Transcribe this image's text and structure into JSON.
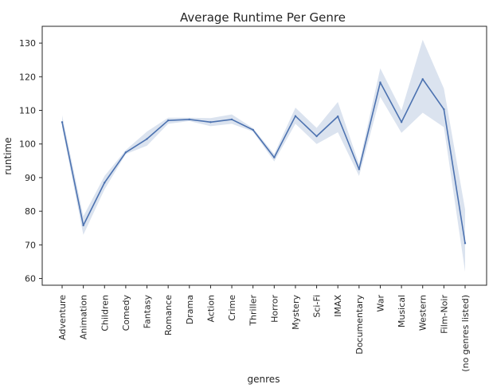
{
  "chart_data": {
    "type": "line",
    "title": "Average Runtime Per Genre",
    "xlabel": "genres",
    "ylabel": "runtime",
    "ylim": [
      58,
      135
    ],
    "yticks": [
      60,
      70,
      80,
      90,
      100,
      110,
      120,
      130
    ],
    "grid": false,
    "line_color": "#4c72b0",
    "band_color": "#4c72b0",
    "categories": [
      "Adventure",
      "Animation",
      "Children",
      "Comedy",
      "Fantasy",
      "Romance",
      "Drama",
      "Action",
      "Crime",
      "Thriller",
      "Horror",
      "Mystery",
      "Sci-Fi",
      "IMAX",
      "Documentary",
      "War",
      "Musical",
      "Western",
      "Film-Noir",
      "(no genres listed)"
    ],
    "series": [
      {
        "values": [
          106.5,
          75.8,
          88.5,
          97.5,
          101.5,
          107.0,
          107.3,
          106.5,
          107.3,
          104.2,
          96.0,
          108.3,
          102.3,
          108.2,
          92.5,
          118.3,
          106.5,
          119.3,
          110.3,
          70.5
        ],
        "ci_lower": [
          105.0,
          73.0,
          86.5,
          97.0,
          99.5,
          106.0,
          106.8,
          105.3,
          106.0,
          103.7,
          94.8,
          106.0,
          100.0,
          103.5,
          90.5,
          114.0,
          103.3,
          109.3,
          105.0,
          62.0
        ],
        "ci_upper": [
          108.5,
          78.5,
          90.5,
          98.2,
          103.7,
          107.8,
          107.8,
          107.7,
          108.8,
          104.7,
          97.0,
          110.8,
          104.8,
          112.5,
          94.0,
          122.5,
          110.0,
          131.0,
          116.5,
          80.5
        ]
      }
    ]
  }
}
